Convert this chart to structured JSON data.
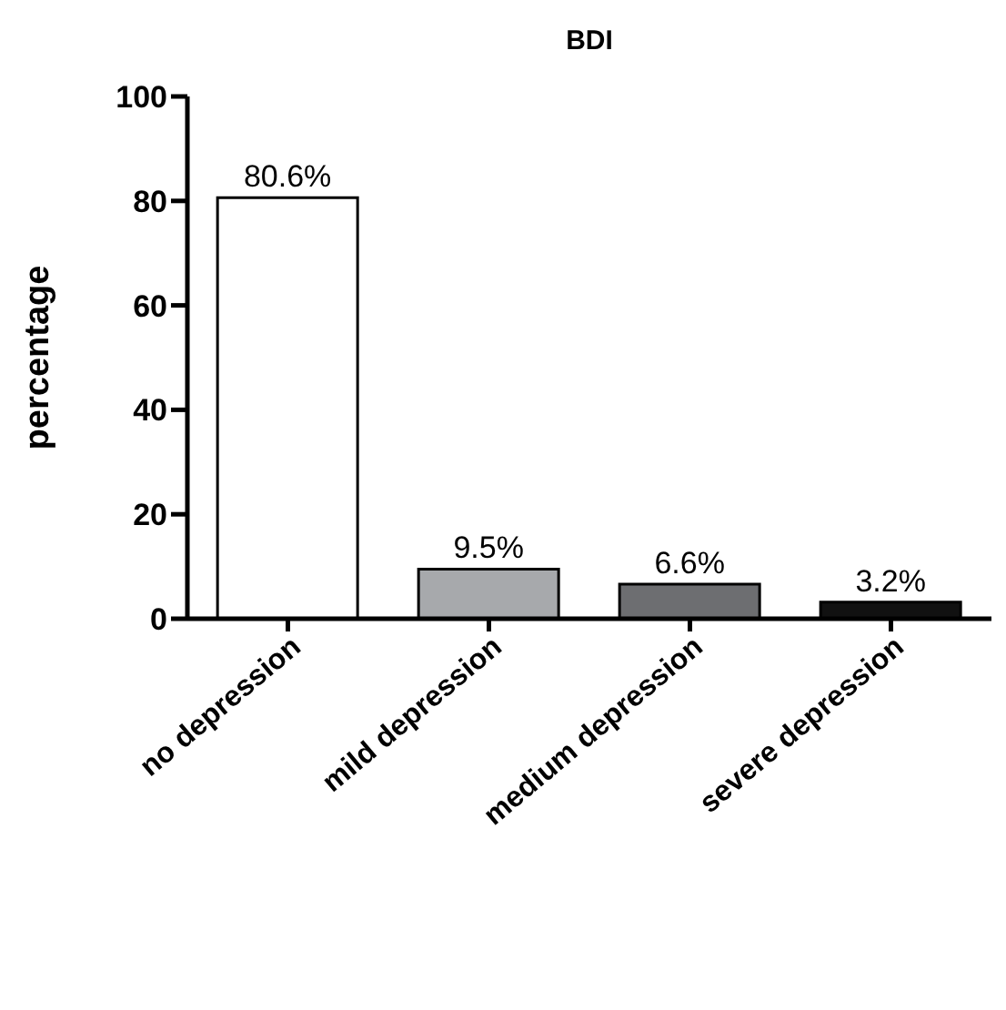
{
  "chart_data": {
    "type": "bar",
    "title": "BDI",
    "ylabel": "percentage",
    "categories": [
      "no depression",
      "mild depression",
      "medium depression",
      "severe depression"
    ],
    "values": [
      80.6,
      9.5,
      6.6,
      3.2
    ],
    "colors": [
      "#ffffff",
      "#a7a9ac",
      "#6d6e71",
      "#111111"
    ],
    "value_labels": [
      "80.6%",
      "9.5%",
      "6.6%",
      "3.2%"
    ],
    "ylim": [
      0,
      100
    ],
    "yticks": [
      0,
      20,
      40,
      60,
      80,
      100
    ],
    "grid": false,
    "legend": false
  }
}
